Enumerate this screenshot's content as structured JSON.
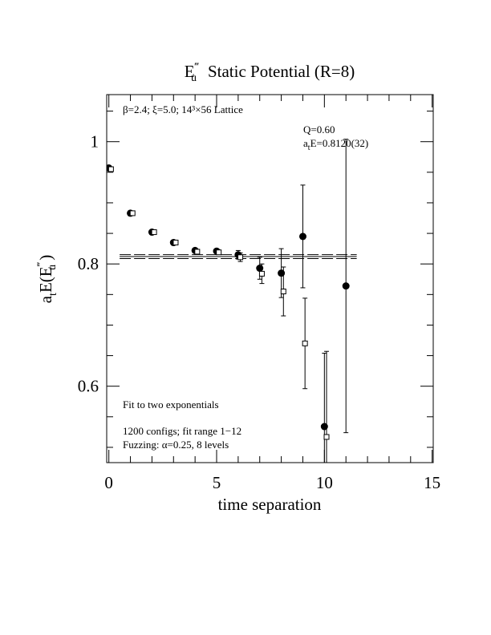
{
  "chart_data": {
    "type": "scatter",
    "title_parts": [
      "E",
      "‴",
      "u",
      "Static Potential (R=8)"
    ],
    "xlabel": "time separation",
    "ylabel_parts": [
      "a",
      "t",
      "E(E",
      "‴",
      "u",
      " )"
    ],
    "annotations": [
      "β=2.4; ξ=5.0; 14³×56 Lattice",
      "Q=0.60",
      "Fit to two exponentials",
      "1200 configs; fit range 1−12",
      "Fuzzing: α=0.25, 8 levels"
    ],
    "fit_label_parts": [
      "a",
      "t",
      "E=0.8120(32)"
    ],
    "xlim": [
      -0.1,
      15.05
    ],
    "ylim": [
      0.475,
      1.077
    ],
    "xticks": [
      0,
      5,
      10,
      15
    ],
    "xminor_ticks": [
      1,
      2,
      3,
      4,
      6,
      7,
      8,
      9,
      11,
      12,
      13,
      14
    ],
    "yticks": [
      0.6,
      0.8,
      1
    ],
    "yminor_ticks": [
      0.5,
      0.55,
      0.65,
      0.7,
      0.75,
      0.85,
      0.9,
      0.95,
      1.05
    ],
    "series": [
      {
        "marker": "filled-circle",
        "color": "#000000",
        "x": [
          0,
          1,
          2,
          3,
          4,
          5,
          6,
          7,
          8,
          9,
          10,
          11
        ],
        "values": [
          0.957,
          0.883,
          0.852,
          0.835,
          0.822,
          0.821,
          0.815,
          0.793,
          0.785,
          0.845,
          0.534,
          0.764
        ],
        "errors": [
          0.002,
          0.002,
          0.002,
          0.002,
          0.003,
          0.003,
          0.007,
          0.018,
          0.04,
          0.084,
          0.12,
          0.24
        ]
      },
      {
        "marker": "open-square",
        "color": "#000000",
        "x": [
          0.1,
          1.1,
          2.1,
          3.1,
          4.1,
          5.1,
          6.1,
          7.1,
          8.1,
          9.1,
          10.1
        ],
        "values": [
          0.955,
          0.883,
          0.852,
          0.835,
          0.82,
          0.819,
          0.811,
          0.784,
          0.755,
          0.67,
          0.517
        ],
        "errors": [
          0.002,
          0.002,
          0.002,
          0.002,
          0.003,
          0.003,
          0.007,
          0.016,
          0.04,
          0.074,
          0.14
        ]
      }
    ],
    "fit": {
      "value": 0.812,
      "error": 0.0032,
      "range": [
        0.5,
        11.5
      ]
    }
  }
}
